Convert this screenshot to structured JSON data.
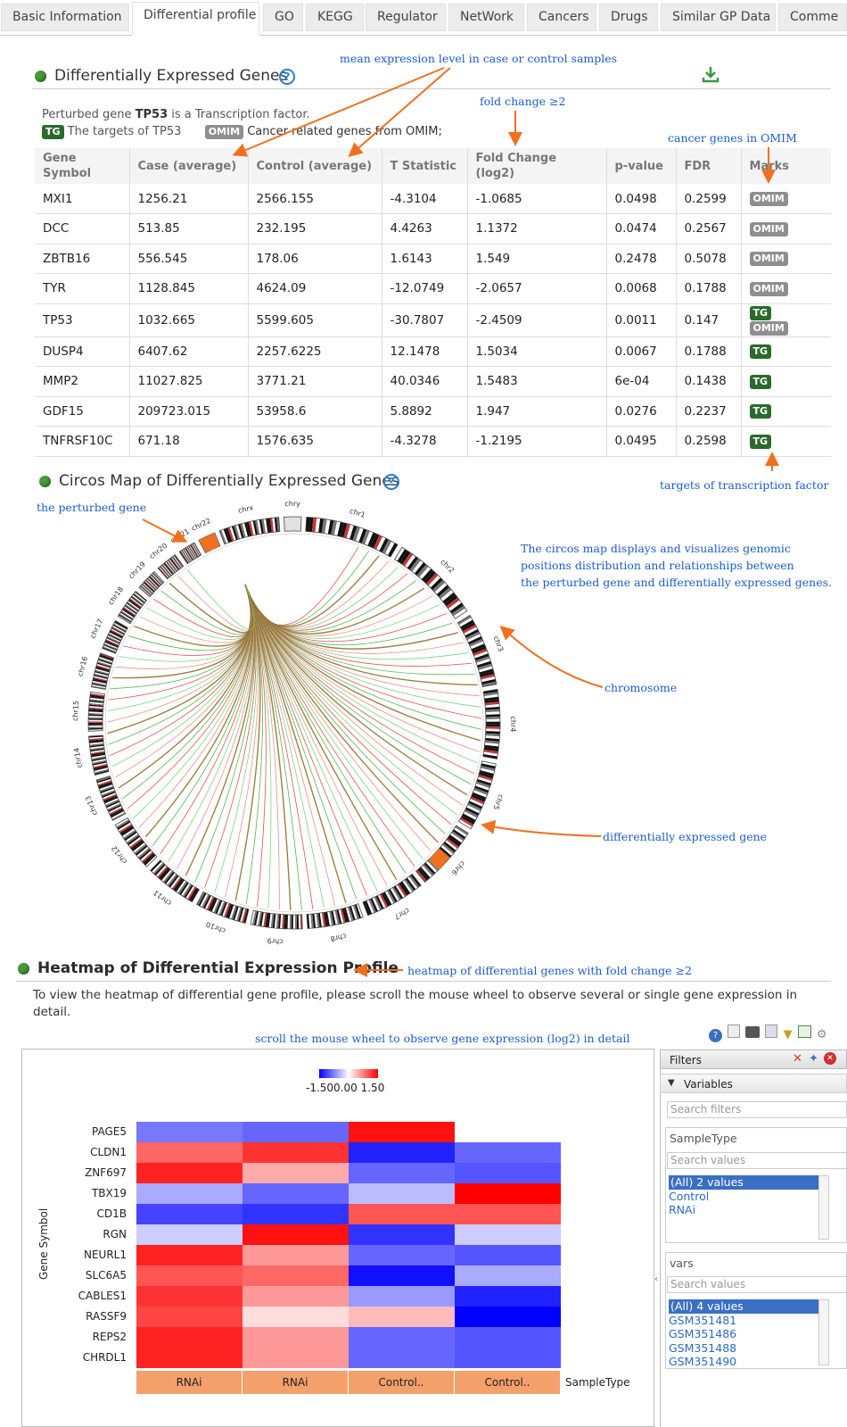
{
  "tabs": [
    "Basic Information",
    "Differential profile",
    "GO",
    "KEGG",
    "Regulator",
    "NetWork",
    "Cancers",
    "Drugs",
    "Similar GP Data",
    "Comme"
  ],
  "deg": {
    "title": "Differentially Expressed Genes",
    "help": "?",
    "perturbed_prefix": "Perturbed gene ",
    "perturbed_gene": "TP53",
    "perturbed_suffix": " is a Transcription factor.",
    "tg_badge": "TG",
    "tg_text": "The targets of TP53",
    "omim_badge": "OMIM",
    "omim_text": "Cancer related genes from OMIM;",
    "headers": [
      "Gene Symbol",
      "Case (average)",
      "Control (average)",
      "T Statistic",
      "Fold Change (log2)",
      "p-value",
      "FDR",
      "Marks"
    ],
    "rows": [
      [
        "MXI1",
        "1256.21",
        "2566.155",
        "-4.3104",
        "-1.0685",
        "0.0498",
        "0.2599",
        [
          "OMIM"
        ]
      ],
      [
        "DCC",
        "513.85",
        "232.195",
        "4.4263",
        "1.1372",
        "0.0474",
        "0.2567",
        [
          "OMIM"
        ]
      ],
      [
        "ZBTB16",
        "556.545",
        "178.06",
        "1.6143",
        "1.549",
        "0.2478",
        "0.5078",
        [
          "OMIM"
        ]
      ],
      [
        "TYR",
        "1128.845",
        "4624.09",
        "-12.0749",
        "-2.0657",
        "0.0068",
        "0.1788",
        [
          "OMIM"
        ]
      ],
      [
        "TP53",
        "1032.665",
        "5599.605",
        "-30.7807",
        "-2.4509",
        "0.0011",
        "0.147",
        [
          "TG",
          "OMIM"
        ]
      ],
      [
        "DUSP4",
        "6407.62",
        "2257.6225",
        "12.1478",
        "1.5034",
        "0.0067",
        "0.1788",
        [
          "TG"
        ]
      ],
      [
        "MMP2",
        "11027.825",
        "3771.21",
        "40.0346",
        "1.5483",
        "6e-04",
        "0.1438",
        [
          "TG"
        ]
      ],
      [
        "GDF15",
        "209723.015",
        "53958.6",
        "5.8892",
        "1.947",
        "0.0276",
        "0.2237",
        [
          "TG"
        ]
      ],
      [
        "TNFRSF10C",
        "671.18",
        "1576.635",
        "-4.3278",
        "-1.2195",
        "0.0495",
        "0.2598",
        [
          "TG"
        ]
      ]
    ]
  },
  "circos": {
    "title": "Circos Map of Differentially Expressed Genes",
    "help": "?",
    "chromosomes": [
      "chr1",
      "chr2",
      "chr3",
      "chr4",
      "chr5",
      "chr6",
      "chr7",
      "chr8",
      "chr9",
      "chr10",
      "chr11",
      "chr12",
      "chr13",
      "chr14",
      "chr15",
      "chr16",
      "chr17",
      "chr18",
      "chr19",
      "chr20",
      "chr21",
      "chr22",
      "chrx",
      "chry"
    ]
  },
  "heatmap": {
    "title": "Heatmap of Differential Expression Profile",
    "intro": "To view the heatmap of differential gene profile, please scroll the mouse wheel to observe several or single gene expression in detail.",
    "legend_min": "-1.500.00",
    "legend_max": "1.50",
    "ylabel": "Gene Symbol",
    "genes": [
      "PAGE5",
      "CLDN1",
      "ZNF697",
      "TBX19",
      "CD1B",
      "RGN",
      "NEURL1",
      "SLC6A5",
      "CABLES1",
      "RASSF9",
      "REPS2",
      "CHRDL1"
    ],
    "samples": [
      "RNAi",
      "RNAi",
      "Control..",
      "Control.."
    ],
    "sample_axis": "SampleType",
    "values": [
      [
        -0.8,
        -0.9,
        1.4,
        0.0
      ],
      [
        0.9,
        1.2,
        -1.3,
        -0.9
      ],
      [
        1.3,
        0.5,
        -0.9,
        -1.0
      ],
      [
        -0.5,
        -0.9,
        -0.4,
        1.5
      ],
      [
        -1.1,
        -1.2,
        1.0,
        1.0
      ],
      [
        -0.3,
        1.4,
        -1.2,
        -0.3
      ],
      [
        1.3,
        0.6,
        -0.9,
        -1.0
      ],
      [
        1.0,
        0.9,
        -1.4,
        -0.5
      ],
      [
        1.2,
        0.6,
        -0.6,
        -1.3
      ],
      [
        1.1,
        0.2,
        0.4,
        -1.5
      ],
      [
        1.3,
        0.6,
        -0.9,
        -1.0
      ],
      [
        1.3,
        0.6,
        -0.9,
        -1.0
      ]
    ]
  },
  "filters": {
    "title": "Filters",
    "variables": "Variables",
    "search_filters": "Search filters",
    "sampletype_label": "SampleType",
    "search_values": "Search values",
    "sampletype_items": [
      "(All) 2 values",
      "Control",
      "RNAi"
    ],
    "vars_label": "vars",
    "vars_items": [
      "(All) 4 values",
      "GSM351481",
      "GSM351486",
      "GSM351488",
      "GSM351490"
    ]
  },
  "annotations": {
    "mean_expr": "mean expression level in case or control samples",
    "fold_change": "fold change ≥2",
    "cancer_genes": "cancer genes in OMIM",
    "targets_tf": "targets of transcription factor",
    "perturbed_gene": "the perturbed gene",
    "circos_desc1": "The circos map displays and visualizes genomic",
    "circos_desc2": "positions distribution and relationships between",
    "circos_desc3": "the perturbed gene and differentially expressed genes.",
    "chromosome": "chromosome",
    "de_gene": "differentially expressed gene",
    "heatmap_note": "heatmap of differential genes with fold change ≥2",
    "scroll_note": "scroll the mouse wheel to observe  gene expression (log2) in detail"
  },
  "colors": {
    "accent_orange": "#f07020",
    "annotation_blue": "#1b5dcc",
    "tg_green": "#2b6a2b",
    "omim_gray": "#8f8f8f",
    "heat_high": "#ff0000",
    "heat_low": "#0000ff",
    "sample_bar": "#f4a06a"
  }
}
